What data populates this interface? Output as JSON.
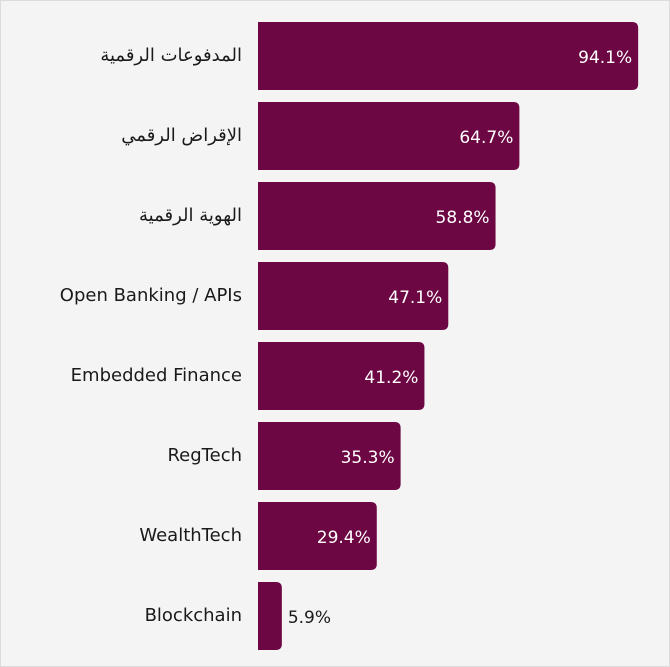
{
  "chart_data": {
    "type": "barh",
    "categories": [
      "المدفوعات الرقمية",
      "الإقراض الرقمي",
      "الهوية الرقمية",
      "Open Banking / APIs",
      "Embedded Finance",
      "RegTech",
      "WealthTech",
      "Blockchain"
    ],
    "values": [
      94.1,
      64.7,
      58.8,
      47.1,
      41.2,
      35.3,
      29.4,
      5.9
    ],
    "value_labels": [
      "94.1%",
      "64.7%",
      "58.8%",
      "47.1%",
      "41.2%",
      "35.3%",
      "29.4%",
      "5.9%"
    ],
    "color": "#6d0743",
    "xlim": [
      0,
      100
    ]
  }
}
